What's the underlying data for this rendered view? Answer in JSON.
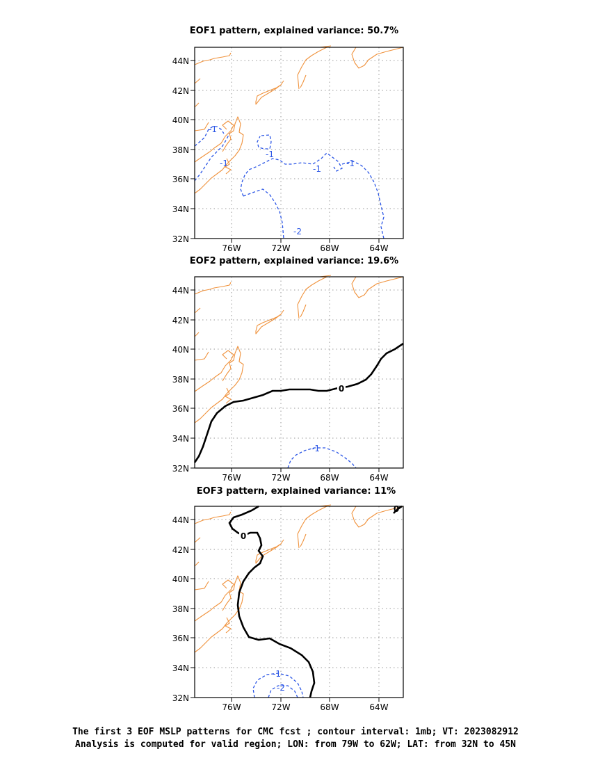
{
  "panels": [
    {
      "title": "EOF1 pattern, explained variance: 50.7%",
      "lat_labels": [
        "44N",
        "42N",
        "40N",
        "38N",
        "36N",
        "34N",
        "32N"
      ],
      "lon_labels": [
        "76W",
        "72W",
        "68W",
        "64W"
      ],
      "contour_labels": [
        "-1",
        "-1",
        "-1",
        "-1",
        "-1",
        "-2"
      ]
    },
    {
      "title": "EOF2 pattern, explained variance: 19.6%",
      "lat_labels": [
        "44N",
        "42N",
        "40N",
        "38N",
        "36N",
        "34N",
        "32N"
      ],
      "lon_labels": [
        "76W",
        "72W",
        "68W",
        "64W"
      ],
      "contour_labels": [
        "0",
        "-1"
      ]
    },
    {
      "title": "EOF3 pattern, explained variance: 11%",
      "lat_labels": [
        "44N",
        "42N",
        "40N",
        "38N",
        "36N",
        "34N",
        "32N"
      ],
      "lon_labels": [
        "76W",
        "72W",
        "68W",
        "64W"
      ],
      "contour_labels": [
        "0",
        "0",
        "-1",
        "-2"
      ]
    }
  ],
  "caption": {
    "line1": "The first 3 EOF MSLP patterns for CMC fcst ; contour interval: 1mb; VT: 2023082912",
    "line2": "Analysis is computed for valid region; LON: from 79W to 62W; LAT: from 32N to 45N"
  },
  "colors": {
    "coastline": "#f0923c",
    "negative_contour": "#2a55e6",
    "zero_contour": "#000000",
    "grid": "#9a9a9a"
  }
}
